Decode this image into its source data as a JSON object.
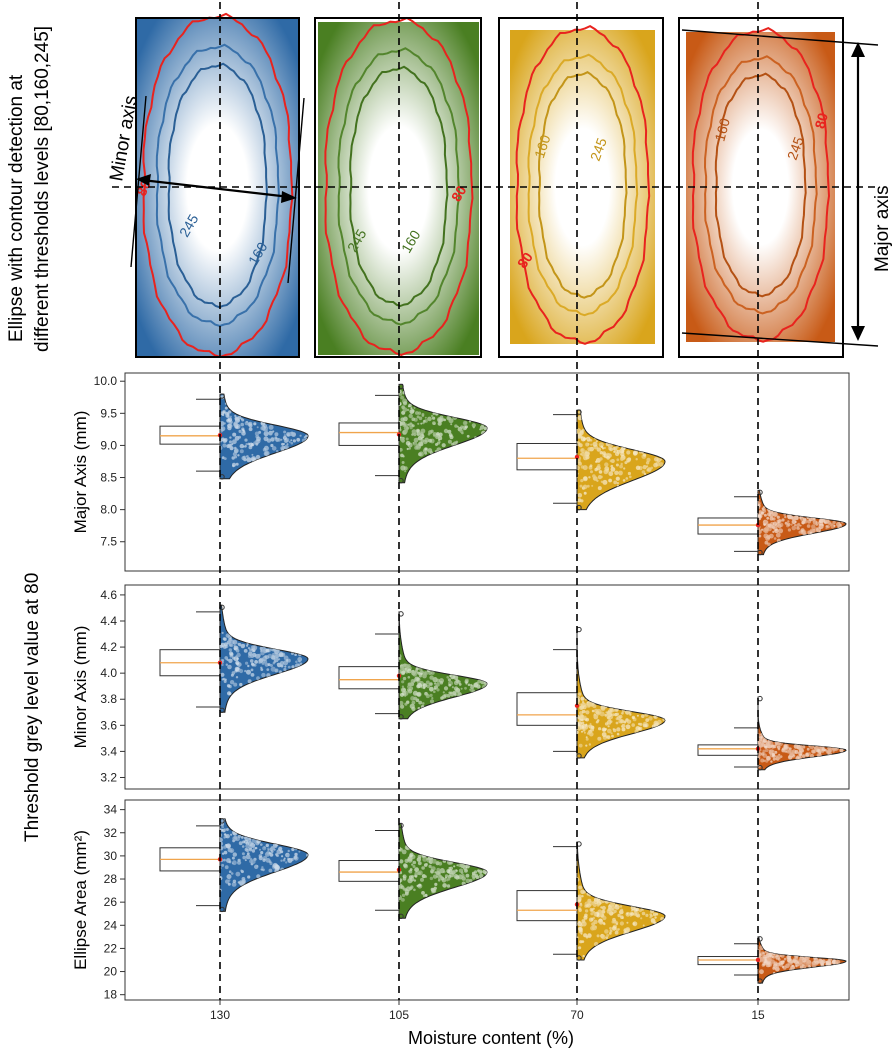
{
  "figure": {
    "top_label_line1": "Ellipse with contour detection at",
    "top_label_line2": "different thresholds levels [80,160,245]",
    "left_label": "Threshold grey level value at 80",
    "minor_axis_annotation": "Minor axis",
    "major_axis_annotation": "Major axis",
    "x_title": "Moisture content (%)"
  },
  "samples": [
    {
      "moisture": "130",
      "color": "#2f6aa6",
      "contours": [
        "80",
        "245",
        "160"
      ]
    },
    {
      "moisture": "105",
      "color": "#4a7f22",
      "contours": [
        "245",
        "160",
        "80"
      ]
    },
    {
      "moisture": "70",
      "color": "#d9a51c",
      "contours": [
        "160",
        "245",
        "80"
      ]
    },
    {
      "moisture": "15",
      "color": "#c85a16",
      "contours": [
        "160",
        "245",
        "80"
      ]
    }
  ],
  "colors": {
    "contour_80": "#e8231e",
    "mean_marker": "#e8231e",
    "median_line": "#f0a44c"
  },
  "chart_data": [
    {
      "type": "raincloud",
      "ylabel": "Major Axis (mm)",
      "categories": [
        "130",
        "105",
        "70",
        "15"
      ],
      "ylim": [
        7.2,
        10.05
      ],
      "yticks": [
        "7.5",
        "8.0",
        "8.5",
        "9.0",
        "9.5",
        "10.0"
      ],
      "series": [
        {
          "category": "130",
          "q1": 9.02,
          "median": 9.15,
          "q3": 9.3,
          "whisker_low": 8.6,
          "whisker_high": 9.72,
          "mean": 9.16,
          "mode": 9.15,
          "spread": 0.18,
          "min": 8.48,
          "max": 9.8
        },
        {
          "category": "105",
          "q1": 9.0,
          "median": 9.2,
          "q3": 9.35,
          "whisker_low": 8.53,
          "whisker_high": 9.78,
          "mean": 9.17,
          "mode": 9.27,
          "spread": 0.18,
          "min": 8.42,
          "max": 9.95
        },
        {
          "category": "70",
          "q1": 8.62,
          "median": 8.8,
          "q3": 9.03,
          "whisker_low": 8.1,
          "whisker_high": 9.48,
          "mean": 8.82,
          "mode": 8.75,
          "spread": 0.2,
          "min": 8.0,
          "max": 9.55
        },
        {
          "category": "15",
          "q1": 7.62,
          "median": 7.76,
          "q3": 7.87,
          "whisker_low": 7.35,
          "whisker_high": 8.2,
          "mean": 7.76,
          "mode": 7.78,
          "spread": 0.1,
          "min": 7.3,
          "max": 8.3
        }
      ]
    },
    {
      "type": "raincloud",
      "ylabel": "Minor Axis (mm)",
      "categories": [
        "130",
        "105",
        "70",
        "15"
      ],
      "ylim": [
        3.15,
        4.63
      ],
      "yticks": [
        "3.2",
        "3.4",
        "3.6",
        "3.8",
        "4.0",
        "4.2",
        "4.4",
        "4.6"
      ],
      "series": [
        {
          "category": "130",
          "q1": 3.98,
          "median": 4.08,
          "q3": 4.18,
          "whisker_low": 3.74,
          "whisker_high": 4.47,
          "mean": 4.08,
          "mode": 4.11,
          "spread": 0.08,
          "min": 3.7,
          "max": 4.52
        },
        {
          "category": "105",
          "q1": 3.88,
          "median": 3.95,
          "q3": 4.05,
          "whisker_low": 3.69,
          "whisker_high": 4.3,
          "mean": 3.98,
          "mode": 3.92,
          "spread": 0.07,
          "min": 3.65,
          "max": 4.47
        },
        {
          "category": "70",
          "q1": 3.6,
          "median": 3.68,
          "q3": 3.85,
          "whisker_low": 3.4,
          "whisker_high": 4.18,
          "mean": 3.75,
          "mode": 3.64,
          "spread": 0.07,
          "min": 3.35,
          "max": 4.35
        },
        {
          "category": "15",
          "q1": 3.37,
          "median": 3.42,
          "q3": 3.45,
          "whisker_low": 3.28,
          "whisker_high": 3.58,
          "mean": 3.42,
          "mode": 3.41,
          "spread": 0.035,
          "min": 3.26,
          "max": 3.82
        }
      ]
    },
    {
      "type": "raincloud",
      "ylabel": "Ellipse Area (mm²)",
      "categories": [
        "130",
        "105",
        "70",
        "15"
      ],
      "ylim": [
        17.8,
        34.4
      ],
      "yticks": [
        "18",
        "20",
        "22",
        "24",
        "26",
        "28",
        "30",
        "32",
        "34"
      ],
      "series": [
        {
          "category": "130",
          "q1": 28.7,
          "median": 29.7,
          "q3": 30.7,
          "whisker_low": 25.7,
          "whisker_high": 32.6,
          "mean": 29.7,
          "mode": 30.1,
          "spread": 1.0,
          "min": 25.2,
          "max": 33.2
        },
        {
          "category": "105",
          "q1": 27.8,
          "median": 28.6,
          "q3": 29.6,
          "whisker_low": 25.3,
          "whisker_high": 32.2,
          "mean": 28.8,
          "mode": 28.6,
          "spread": 0.9,
          "min": 24.6,
          "max": 32.8
        },
        {
          "category": "70",
          "q1": 24.4,
          "median": 25.3,
          "q3": 27.0,
          "whisker_low": 21.5,
          "whisker_high": 30.8,
          "mean": 25.8,
          "mode": 24.8,
          "spread": 0.9,
          "min": 21.0,
          "max": 31.2
        },
        {
          "category": "15",
          "q1": 20.6,
          "median": 21.0,
          "q3": 21.3,
          "whisker_low": 19.7,
          "whisker_high": 22.4,
          "mean": 21.0,
          "mode": 20.9,
          "spread": 0.35,
          "min": 19.0,
          "max": 23.0
        }
      ]
    }
  ]
}
